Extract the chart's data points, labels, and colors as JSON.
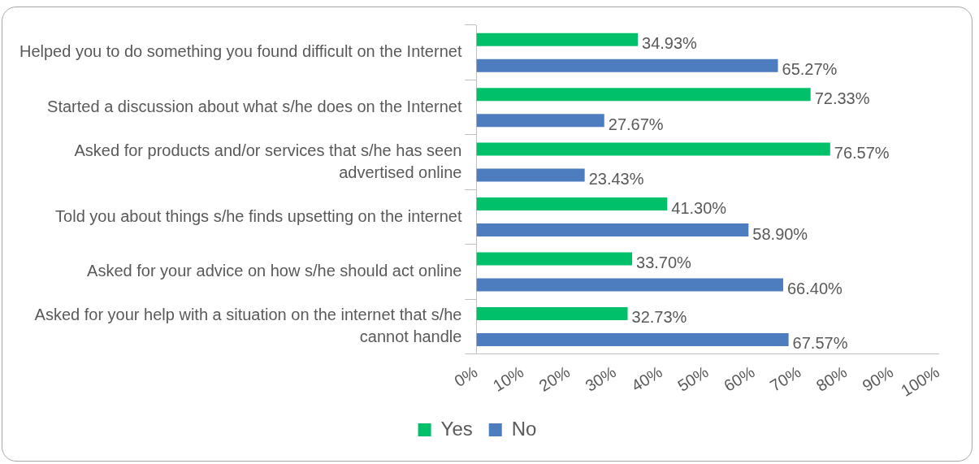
{
  "chart_data": {
    "type": "bar",
    "orientation": "horizontal",
    "categories": [
      "Helped you to do something you found difficult on the Internet",
      "Started a discussion about what s/he does on the Internet",
      "Asked for products and/or services that s/he has seen advertised online",
      "Told you about things s/he finds upsetting on the internet",
      "Asked for your advice on how s/he should act online",
      "Asked for your help with a situation on the internet that s/he cannot handle"
    ],
    "series": [
      {
        "name": "Yes",
        "color": "#00c06a",
        "values": [
          34.93,
          72.33,
          76.57,
          41.3,
          33.7,
          32.73
        ],
        "value_labels": [
          "34.93%",
          "72.33%",
          "76.57%",
          "41.30%",
          "33.70%",
          "32.73%"
        ]
      },
      {
        "name": "No",
        "color": "#4e7dbf",
        "values": [
          65.27,
          27.67,
          23.43,
          58.9,
          66.4,
          67.57
        ],
        "value_labels": [
          "65.27%",
          "27.67%",
          "23.43%",
          "58.90%",
          "66.40%",
          "67.57%"
        ]
      }
    ],
    "xlim": [
      0,
      100
    ],
    "xticks": [
      {
        "value": 0,
        "label": "0%"
      },
      {
        "value": 10,
        "label": "10%"
      },
      {
        "value": 20,
        "label": "20%"
      },
      {
        "value": 30,
        "label": "30%"
      },
      {
        "value": 40,
        "label": "40%"
      },
      {
        "value": 50,
        "label": "50%"
      },
      {
        "value": 60,
        "label": "60%"
      },
      {
        "value": 70,
        "label": "70%"
      },
      {
        "value": 80,
        "label": "80%"
      },
      {
        "value": 90,
        "label": "90%"
      },
      {
        "value": 100,
        "label": "100%"
      }
    ],
    "grid": false,
    "legend": "bottom"
  }
}
